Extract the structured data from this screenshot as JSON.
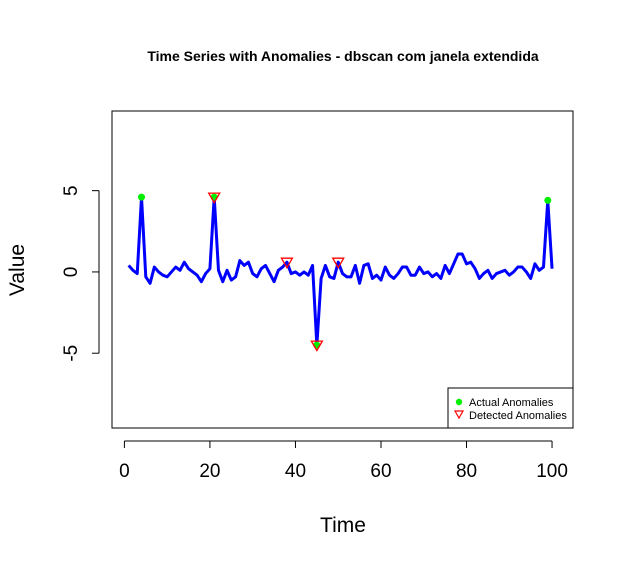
{
  "chart_data": {
    "type": "line",
    "title": "Time Series with Anomalies - dbscan com janela extendida",
    "xlabel": "Time",
    "ylabel": "Value",
    "xlim": [
      -2.9,
      104.9
    ],
    "ylim": [
      -9.6,
      9.9
    ],
    "x_ticks": [
      0,
      20,
      40,
      60,
      80,
      100
    ],
    "y_ticks": [
      -5,
      0,
      5
    ],
    "series": [
      {
        "color": "#0000ff",
        "x": [
          1,
          2,
          3,
          4,
          5,
          6,
          7,
          8,
          9,
          10,
          11,
          12,
          13,
          14,
          15,
          16,
          17,
          18,
          19,
          20,
          21,
          22,
          23,
          24,
          25,
          26,
          27,
          28,
          29,
          30,
          31,
          32,
          33,
          34,
          35,
          36,
          37,
          38,
          39,
          40,
          41,
          42,
          43,
          44,
          45,
          46,
          47,
          48,
          49,
          50,
          51,
          52,
          53,
          54,
          55,
          56,
          57,
          58,
          59,
          60,
          61,
          62,
          63,
          64,
          65,
          66,
          67,
          68,
          69,
          70,
          71,
          72,
          73,
          74,
          75,
          76,
          77,
          78,
          79,
          80,
          81,
          82,
          83,
          84,
          85,
          86,
          87,
          88,
          89,
          90,
          91,
          92,
          93,
          94,
          95,
          96,
          97,
          98,
          99,
          100
        ],
        "y": [
          0.4,
          0.1,
          -0.1,
          4.6,
          -0.3,
          -0.7,
          0.3,
          0.0,
          -0.2,
          -0.3,
          0.0,
          0.3,
          0.1,
          0.6,
          0.2,
          0.0,
          -0.2,
          -0.6,
          -0.1,
          0.2,
          4.6,
          0.1,
          -0.6,
          0.1,
          -0.5,
          -0.3,
          0.7,
          0.4,
          0.6,
          -0.1,
          -0.3,
          0.2,
          0.4,
          -0.1,
          -0.6,
          0.1,
          0.3,
          0.6,
          -0.1,
          0.0,
          -0.2,
          0.0,
          -0.2,
          0.4,
          -4.5,
          -0.4,
          0.4,
          -0.3,
          -0.4,
          0.6,
          -0.1,
          -0.3,
          -0.3,
          0.4,
          -0.7,
          0.4,
          0.5,
          -0.4,
          -0.2,
          -0.5,
          0.3,
          -0.2,
          -0.4,
          -0.1,
          0.3,
          0.3,
          -0.2,
          -0.2,
          0.3,
          -0.1,
          0.0,
          -0.3,
          -0.1,
          -0.4,
          0.4,
          -0.1,
          0.5,
          1.1,
          1.1,
          0.5,
          0.6,
          0.2,
          -0.4,
          -0.1,
          0.1,
          -0.4,
          -0.1,
          0.0,
          0.1,
          -0.2,
          0.0,
          0.3,
          0.3,
          0.0,
          -0.4,
          0.5,
          0.1,
          0.3,
          4.4,
          0.2
        ]
      }
    ],
    "actual_anomalies": {
      "name": "Actual Anomalies",
      "color": "#00ee00",
      "x": [
        4,
        21,
        45,
        99
      ],
      "y": [
        4.6,
        4.6,
        -4.5,
        4.4
      ]
    },
    "detected_anomalies": {
      "name": "Detected Anomalies",
      "color": "#ff0000",
      "x": [
        21,
        38,
        45,
        50
      ],
      "y": [
        4.6,
        0.6,
        -4.5,
        0.6
      ]
    },
    "legend_position": "bottom-right",
    "grid": false
  }
}
